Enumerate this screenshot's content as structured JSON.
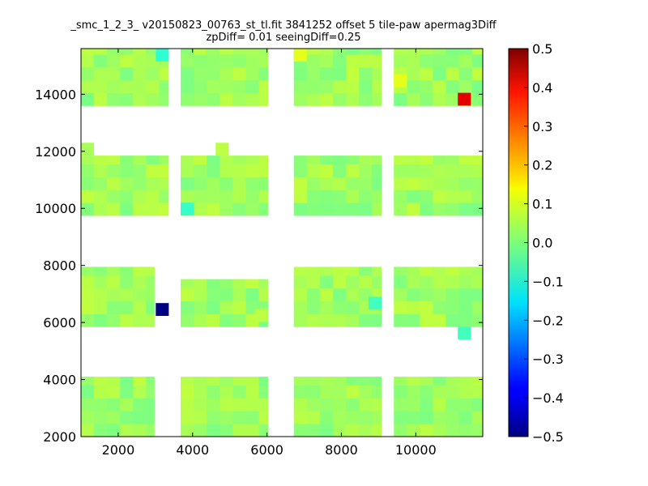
{
  "chart_data": {
    "type": "heatmap",
    "title_line1": "_smc_1_2_3_ v20150823_00763_st_tl.fit 3841252 offset 5 tile-paw apermag3Diff",
    "title_line2": "zpDiff= 0.01 seeingDiff=0.25",
    "xlim": [
      1000,
      11800
    ],
    "ylim": [
      2000,
      15600
    ],
    "x_ticks": [
      2000,
      4000,
      6000,
      8000,
      10000
    ],
    "y_ticks": [
      2000,
      4000,
      6000,
      8000,
      10000,
      12000,
      14000
    ],
    "colorbar": {
      "colormap": "jet",
      "range": [
        -0.5,
        0.5
      ],
      "ticks": [
        "0.5",
        "0.4",
        "0.3",
        "0.2",
        "0.1",
        "0.0",
        "−0.1",
        "−0.2",
        "−0.3",
        "−0.4",
        "−0.5"
      ]
    },
    "cell_size": [
      350,
      450
    ],
    "background_value": 0.03,
    "blocks": [
      {
        "x": [
          1000,
          3350
        ],
        "y": [
          13600,
          15600
        ]
      },
      {
        "x": [
          3680,
          6020
        ],
        "y": [
          13600,
          15600
        ]
      },
      {
        "x": [
          6720,
          9070
        ],
        "y": [
          13600,
          15600
        ]
      },
      {
        "x": [
          9410,
          11800
        ],
        "y": [
          13600,
          15600
        ]
      },
      {
        "x": [
          1000,
          3350
        ],
        "y": [
          9750,
          11850
        ]
      },
      {
        "x": [
          3680,
          6020
        ],
        "y": [
          9750,
          11850
        ]
      },
      {
        "x": [
          6720,
          9070
        ],
        "y": [
          9750,
          11850
        ]
      },
      {
        "x": [
          9410,
          11800
        ],
        "y": [
          9750,
          11850
        ]
      },
      {
        "x": [
          1000,
          2970
        ],
        "y": [
          5850,
          7950
        ]
      },
      {
        "x": [
          3680,
          6020
        ],
        "y": [
          5850,
          7520
        ]
      },
      {
        "x": [
          6720,
          9070
        ],
        "y": [
          5850,
          7950
        ]
      },
      {
        "x": [
          9410,
          11800
        ],
        "y": [
          5850,
          7950
        ]
      },
      {
        "x": [
          1000,
          2970
        ],
        "y": [
          2000,
          4100
        ]
      },
      {
        "x": [
          3680,
          6020
        ],
        "y": [
          2000,
          4100
        ]
      },
      {
        "x": [
          6720,
          9070
        ],
        "y": [
          2000,
          4100
        ]
      },
      {
        "x": [
          9410,
          11800
        ],
        "y": [
          2000,
          4100
        ]
      }
    ],
    "notable_cells": [
      {
        "x": 11130,
        "y": 13600,
        "value": 0.4
      },
      {
        "x": 3010,
        "y": 6230,
        "value": -0.5
      },
      {
        "x": 3010,
        "y": 15150,
        "value": -0.08
      },
      {
        "x": 6720,
        "y": 15150,
        "value": 0.1
      },
      {
        "x": 9410,
        "y": 14250,
        "value": 0.1
      },
      {
        "x": 4620,
        "y": 11850,
        "value": 0.06
      },
      {
        "x": 1000,
        "y": 11850,
        "value": 0.04
      },
      {
        "x": 3680,
        "y": 9750,
        "value": -0.07
      },
      {
        "x": 5670,
        "y": 6020,
        "value": 0.06
      },
      {
        "x": 8730,
        "y": 6450,
        "value": -0.06
      },
      {
        "x": 11130,
        "y": 5400,
        "value": -0.06
      }
    ]
  }
}
